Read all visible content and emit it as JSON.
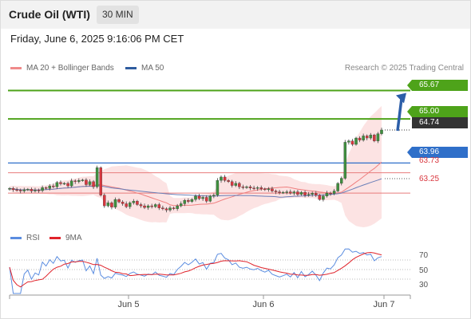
{
  "header": {
    "title": "Crude Oil (WTI)",
    "timeframe": "30 MIN"
  },
  "datetime": "Friday, June 6, 2025 9:16:06 PM CET",
  "legend": {
    "ma20": {
      "label": "MA 20 + Bollinger Bands",
      "color": "#f08a8a"
    },
    "ma50": {
      "label": "MA 50",
      "color": "#2f5c9f"
    },
    "source": "Research © 2025 Trading Central"
  },
  "colors": {
    "up": "#3f8f3f",
    "down": "#d9363e",
    "target_green": "#4ea31a",
    "pivot_blue": "#2f6fc9",
    "resistance_red": "#e87c7c",
    "last_price": "#333333"
  },
  "levels": {
    "l1": {
      "value": "65.67"
    },
    "l2": {
      "value": "65.00"
    },
    "l3": {
      "value": "64.74"
    },
    "l4": {
      "value": "63.96"
    },
    "l5": {
      "value": "63.73"
    },
    "l6": {
      "value": "63.25"
    }
  },
  "rsi_legend": {
    "rsi": "RSI",
    "ma": "9MA"
  },
  "rsi_axis": [
    "70",
    "50",
    "30"
  ],
  "x_labels": [
    "Jun 5",
    "Jun 6",
    "Jun 7"
  ],
  "chart_data": {
    "type": "candlestick",
    "y_range": [
      62.5,
      66.0
    ],
    "x_ticks": [
      "Jun 5",
      "Jun 6",
      "Jun 7"
    ],
    "closes": [
      63.36,
      63.33,
      63.32,
      63.3,
      63.33,
      63.34,
      63.3,
      63.32,
      63.31,
      63.38,
      63.36,
      63.42,
      63.4,
      63.5,
      63.47,
      63.48,
      63.42,
      63.54,
      63.52,
      63.55,
      63.56,
      63.45,
      63.52,
      63.4,
      63.85,
      63.2,
      62.95,
      63.02,
      62.92,
      63.1,
      63.04,
      63.0,
      62.93,
      63.02,
      63.06,
      62.98,
      62.95,
      62.91,
      62.95,
      62.93,
      62.98,
      62.9,
      62.88,
      62.85,
      62.9,
      62.88,
      62.95,
      63.0,
      63.08,
      63.05,
      63.1,
      63.18,
      63.12,
      63.15,
      63.06,
      63.18,
      63.2,
      63.55,
      63.63,
      63.55,
      63.52,
      63.43,
      63.48,
      63.4,
      63.38,
      63.4,
      63.37,
      63.36,
      63.38,
      63.35,
      63.33,
      63.35,
      63.3,
      63.28,
      63.26,
      63.27,
      63.28,
      63.25,
      63.28,
      63.22,
      63.27,
      63.2,
      63.22,
      63.25,
      63.2,
      63.1,
      63.18,
      63.25,
      63.24,
      63.3,
      63.48,
      63.6,
      64.45,
      64.48,
      64.4,
      64.55,
      64.5,
      64.6,
      64.55,
      64.62,
      64.48,
      64.65,
      64.74
    ],
    "ma20": {
      "name": "MA 20 + Bollinger Bands",
      "values_start": 63.35,
      "values_end": 63.98
    },
    "ma50": {
      "name": "MA 50",
      "values_start": 63.35,
      "values_end": 63.51
    },
    "rsi": {
      "name": "RSI",
      "range": [
        0,
        100
      ],
      "last": 69
    },
    "rsi_ma": {
      "name": "9MA",
      "last": 69
    },
    "levels": [
      65.67,
      65.0,
      64.74,
      63.96,
      63.73,
      63.25
    ]
  }
}
